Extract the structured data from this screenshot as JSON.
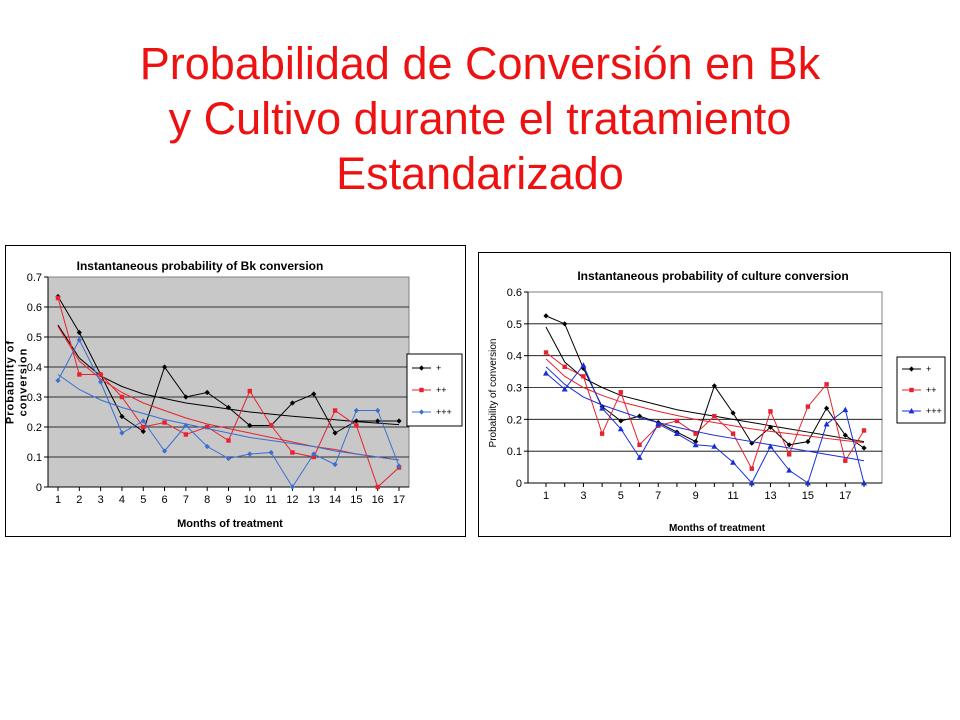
{
  "slide": {
    "title_lines": [
      "Probabilidad de Conversión en Bk",
      "y Cultivo durante el tratamiento",
      "Estandarizado"
    ]
  },
  "chart_data": [
    {
      "type": "line",
      "title": "Instantaneous probability of Bk conversion",
      "xlabel": "Months of treatment",
      "ylabel_lines": [
        "Probability of",
        "conversion"
      ],
      "x": [
        1,
        2,
        3,
        4,
        5,
        6,
        7,
        8,
        9,
        10,
        11,
        12,
        13,
        14,
        15,
        16,
        17
      ],
      "xticks": [
        "1",
        "2",
        "3",
        "4",
        "5",
        "6",
        "7",
        "8",
        "9",
        "10",
        "11",
        "12",
        "13",
        "14",
        "15",
        "16",
        "17"
      ],
      "ylim": [
        0,
        0.7
      ],
      "yticks": [
        "0",
        "0.1",
        "0.2",
        "0.3",
        "0.4",
        "0.5",
        "0.6",
        "0.7"
      ],
      "ytick_values": [
        0,
        0.1,
        0.2,
        0.3,
        0.4,
        0.5,
        0.6,
        0.7
      ],
      "grid": "horizontal",
      "legend_position": "right",
      "series": [
        {
          "name": "+",
          "color": "#000000",
          "marker": "diamond",
          "values": [
            0.635,
            0.515,
            0.375,
            0.235,
            0.185,
            0.4,
            0.3,
            0.315,
            0.265,
            0.205,
            0.205,
            0.28,
            0.31,
            0.18,
            0.22,
            0.22,
            0.22
          ],
          "trend": [
            0.54,
            0.43,
            0.37,
            0.335,
            0.31,
            0.295,
            0.28,
            0.27,
            0.26,
            0.25,
            0.243,
            0.236,
            0.23,
            0.224,
            0.218,
            0.213,
            0.208
          ]
        },
        {
          "name": "++",
          "color": "#e8222e",
          "marker": "square",
          "values": [
            0.63,
            0.375,
            0.375,
            0.3,
            0.2,
            0.215,
            0.175,
            0.2,
            0.155,
            0.32,
            0.205,
            0.115,
            0.1,
            0.255,
            0.205,
            0.0,
            0.065
          ],
          "trend": [
            0.535,
            0.42,
            0.36,
            0.315,
            0.28,
            0.255,
            0.23,
            0.21,
            0.195,
            0.18,
            0.165,
            0.15,
            0.135,
            0.125,
            0.11,
            0.1,
            0.09
          ]
        },
        {
          "name": "+++",
          "color": "#3b6fd0",
          "marker": "diamond",
          "values": [
            0.355,
            0.49,
            0.35,
            0.18,
            0.22,
            0.12,
            0.205,
            0.135,
            0.095,
            0.11,
            0.115,
            0.0,
            0.11,
            0.075,
            0.255,
            0.255,
            0.07
          ],
          "trend": [
            0.375,
            0.325,
            0.29,
            0.265,
            0.245,
            0.225,
            0.21,
            0.195,
            0.18,
            0.165,
            0.155,
            0.145,
            0.135,
            0.12,
            0.11,
            0.1,
            0.09
          ]
        }
      ]
    },
    {
      "type": "line",
      "title": "Instantaneous probability of culture conversion",
      "xlabel": "Months of treatment",
      "ylabel_lines": [
        "Probability of conversion"
      ],
      "x": [
        1,
        2,
        3,
        4,
        5,
        6,
        7,
        8,
        9,
        10,
        11,
        12,
        13,
        14,
        15,
        16,
        17,
        18
      ],
      "xticks": [
        "1",
        "",
        "3",
        "",
        "5",
        "",
        "7",
        "",
        "9",
        "",
        "11",
        "",
        "13",
        "",
        "15",
        "",
        "17",
        ""
      ],
      "ylim": [
        0,
        0.6
      ],
      "yticks": [
        "0",
        "0.1",
        "0.2",
        "0.3",
        "0.4",
        "0.5",
        "0.6"
      ],
      "ytick_values": [
        0,
        0.1,
        0.2,
        0.3,
        0.4,
        0.5,
        0.6
      ],
      "grid": "horizontal",
      "legend_position": "right",
      "series": [
        {
          "name": "+",
          "color": "#000000",
          "marker": "diamond",
          "values": [
            0.525,
            0.5,
            0.36,
            0.24,
            0.195,
            0.21,
            0.19,
            0.16,
            0.13,
            0.305,
            0.22,
            0.125,
            0.175,
            0.12,
            0.13,
            0.235,
            0.15,
            0.11
          ],
          "trend": [
            0.49,
            0.38,
            0.33,
            0.3,
            0.275,
            0.26,
            0.245,
            0.23,
            0.22,
            0.21,
            0.2,
            0.19,
            0.18,
            0.17,
            0.16,
            0.15,
            0.14,
            0.13
          ]
        },
        {
          "name": "++",
          "color": "#e8222e",
          "marker": "square",
          "values": [
            0.41,
            0.365,
            0.335,
            0.155,
            0.285,
            0.12,
            0.18,
            0.195,
            0.155,
            0.21,
            0.155,
            0.045,
            0.225,
            0.09,
            0.24,
            0.31,
            0.07,
            0.165
          ],
          "trend": [
            0.39,
            0.335,
            0.3,
            0.275,
            0.255,
            0.24,
            0.225,
            0.212,
            0.2,
            0.19,
            0.18,
            0.17,
            0.162,
            0.155,
            0.148,
            0.14,
            0.133,
            0.127
          ]
        },
        {
          "name": "+++",
          "color": "#1a2ed8",
          "marker": "triangle",
          "values": [
            0.345,
            0.295,
            0.37,
            0.235,
            0.17,
            0.08,
            0.185,
            0.155,
            0.12,
            0.115,
            0.065,
            0.0,
            0.115,
            0.04,
            0.0,
            0.185,
            0.23,
            0.0
          ],
          "trend": [
            0.365,
            0.31,
            0.27,
            0.245,
            0.225,
            0.205,
            0.19,
            0.175,
            0.162,
            0.15,
            0.14,
            0.13,
            0.12,
            0.11,
            0.1,
            0.09,
            0.08,
            0.07
          ]
        }
      ]
    }
  ]
}
